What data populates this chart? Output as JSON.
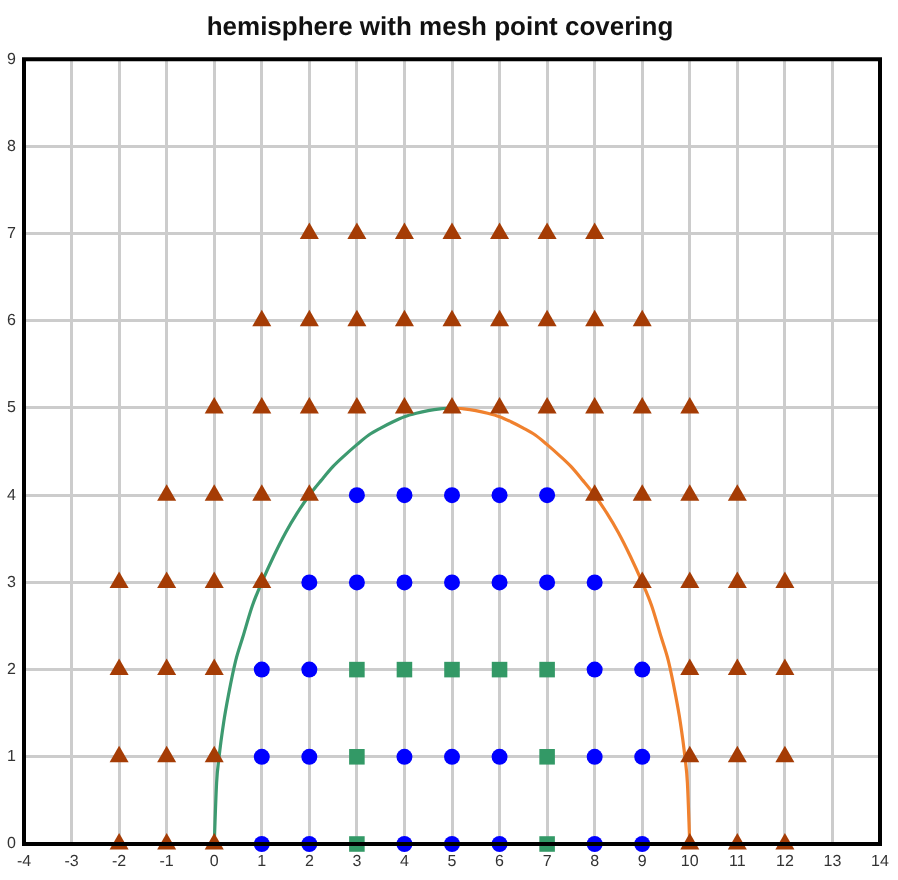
{
  "chart_data": {
    "type": "scatter",
    "title": "hemisphere with mesh point covering",
    "xlim": [
      -4,
      14
    ],
    "xticks": [
      -4,
      -3,
      -2,
      -1,
      0,
      1,
      2,
      3,
      4,
      5,
      6,
      7,
      8,
      9,
      10,
      11,
      12,
      13,
      14
    ],
    "ylim": [
      0,
      9
    ],
    "yticks": [
      0,
      1,
      2,
      3,
      4,
      5,
      6,
      7,
      8,
      9
    ],
    "grid": true,
    "series": [
      {
        "type": "scatter",
        "marker": "triangle",
        "color": "#a53c05",
        "x": [
          2,
          3,
          4,
          5,
          6,
          7,
          8,
          1,
          2,
          3,
          4,
          5,
          6,
          7,
          8,
          9,
          0,
          1,
          2,
          3,
          4,
          5,
          6,
          7,
          8,
          9,
          10,
          -1,
          0,
          1,
          2,
          8,
          9,
          10,
          11,
          -2,
          -1,
          0,
          1,
          9,
          10,
          11,
          12,
          -2,
          -1,
          0,
          10,
          11,
          12,
          -2,
          -1,
          0,
          10,
          11,
          12,
          -2,
          -1,
          0,
          10,
          11,
          12
        ],
        "values": [
          7,
          7,
          7,
          7,
          7,
          7,
          7,
          6,
          6,
          6,
          6,
          6,
          6,
          6,
          6,
          6,
          5,
          5,
          5,
          5,
          5,
          5,
          5,
          5,
          5,
          5,
          5,
          4,
          4,
          4,
          4,
          4,
          4,
          4,
          4,
          3,
          3,
          3,
          3,
          3,
          3,
          3,
          3,
          2,
          2,
          2,
          2,
          2,
          2,
          1,
          1,
          1,
          1,
          1,
          1,
          0,
          0,
          0,
          0,
          0,
          0
        ]
      },
      {
        "type": "scatter",
        "marker": "circle",
        "color": "#0000ff",
        "x": [
          3,
          4,
          5,
          6,
          7,
          2,
          3,
          4,
          5,
          6,
          7,
          8,
          1,
          2,
          8,
          9,
          1,
          2,
          4,
          5,
          6,
          8,
          9,
          1,
          2,
          4,
          5,
          6,
          8,
          9
        ],
        "values": [
          4,
          4,
          4,
          4,
          4,
          3,
          3,
          3,
          3,
          3,
          3,
          3,
          2,
          2,
          2,
          2,
          1,
          1,
          1,
          1,
          1,
          1,
          1,
          0,
          0,
          0,
          0,
          0,
          0,
          0
        ]
      },
      {
        "type": "scatter",
        "marker": "square",
        "color": "#339966",
        "x": [
          3,
          4,
          5,
          6,
          7,
          3,
          7,
          3,
          7
        ],
        "values": [
          2,
          2,
          2,
          2,
          2,
          1,
          1,
          0,
          0
        ]
      },
      {
        "type": "line",
        "marker": "none",
        "line_style": "solid",
        "color": "#3d9a70",
        "x": [
          0,
          0.05,
          0.1,
          0.2,
          0.3,
          0.45,
          0.6,
          0.8,
          1,
          1.25,
          1.5,
          1.75,
          2,
          2.25,
          2.5,
          2.75,
          3,
          3.25,
          3.5,
          3.75,
          4,
          4.25,
          4.5,
          4.75,
          5
        ],
        "values": [
          0,
          0.7,
          0.99,
          1.4,
          1.71,
          2.1,
          2.37,
          2.73,
          3,
          3.3,
          3.57,
          3.8,
          4,
          4.17,
          4.33,
          4.46,
          4.58,
          4.69,
          4.77,
          4.84,
          4.9,
          4.94,
          4.97,
          4.99,
          5
        ]
      },
      {
        "type": "line",
        "marker": "none",
        "line_style": "solid",
        "color": "#f0812e",
        "x": [
          5,
          5.25,
          5.5,
          5.75,
          6,
          6.25,
          6.5,
          6.75,
          7,
          7.25,
          7.5,
          7.75,
          8,
          8.25,
          8.5,
          8.75,
          9,
          9.2,
          9.4,
          9.55,
          9.7,
          9.8,
          9.9,
          9.95,
          10
        ],
        "values": [
          5,
          4.99,
          4.97,
          4.94,
          4.9,
          4.84,
          4.77,
          4.69,
          4.58,
          4.46,
          4.33,
          4.17,
          4,
          3.8,
          3.57,
          3.3,
          3,
          2.73,
          2.37,
          2.1,
          1.71,
          1.4,
          0.99,
          0.7,
          0
        ]
      }
    ]
  }
}
